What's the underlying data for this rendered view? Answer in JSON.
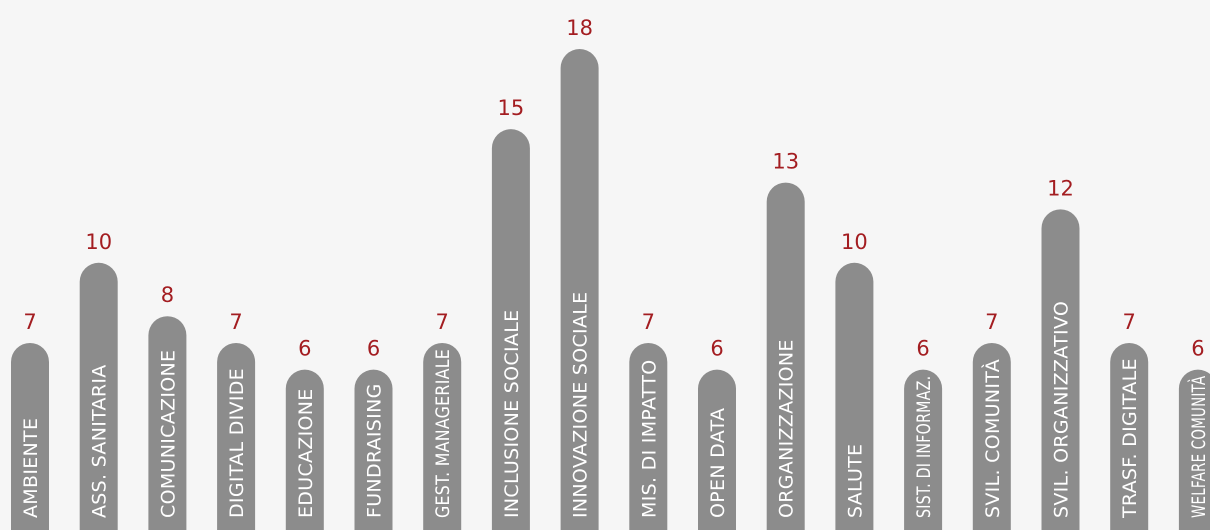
{
  "chart_data": {
    "type": "bar",
    "orientation": "vertical",
    "categories": [
      "AMBIENTE",
      "ASS. SANITARIA",
      "COMUNICAZIONE",
      "DIGITAL DIVIDE",
      "EDUCAZIONE",
      "FUNDRAISING",
      "GEST. MANAGERIALE",
      "INCLUSIONE SOCIALE",
      "INNOVAZIONE SOCIALE",
      "MIS. DI IMPATTO",
      "OPEN DATA",
      "ORGANIZZAZIONE",
      "SALUTE",
      "SIST. DI INFORMAZ.",
      "SVIL. COMUNITÀ",
      "SVIL. ORGANIZZATIVO",
      "TRASF. DIGITALE",
      "WELFARE COMUNITÀ"
    ],
    "values": [
      7,
      10,
      8,
      7,
      6,
      6,
      7,
      15,
      18,
      7,
      6,
      13,
      10,
      6,
      7,
      12,
      7,
      6
    ],
    "title": "",
    "xlabel": "",
    "ylabel": "",
    "ylim": [
      0,
      18
    ],
    "grid": false,
    "legend": "none",
    "data_labels": "above",
    "category_labels": "inside-bar-rotated",
    "colors": {
      "bar": "#8c8c8c",
      "value_label": "#a31d21",
      "category_label": "#ffffff",
      "background": "#f6f6f6"
    }
  }
}
